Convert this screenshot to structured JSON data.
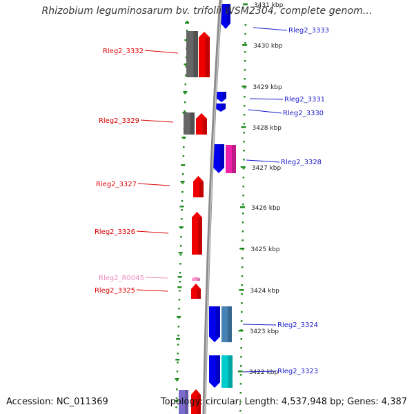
{
  "title": "Rhizobium leguminosarum bv. trifolii WSM2304, complete genom...",
  "footer": {
    "accession": "Accession: NC_011369",
    "summary": "Topology: circular; Length: 4,537,948 bp; Genes: 4,387"
  },
  "colors": {
    "backbone": "#8a8a8a",
    "tick_green": "#1f8a1f",
    "label_left": "#dd0000",
    "label_right": "#1a1acc",
    "label_rna": "#ee88bb"
  },
  "ruler": [
    {
      "label": "3431 kbp"
    },
    {
      "label": "3430 kbp"
    },
    {
      "label": "3429 kbp"
    },
    {
      "label": "3428 kbp"
    },
    {
      "label": "3427 kbp"
    },
    {
      "label": "3426 kbp"
    },
    {
      "label": "3425 kbp"
    },
    {
      "label": "3424 kbp"
    },
    {
      "label": "3423 kbp"
    },
    {
      "label": "3422 kbp"
    }
  ],
  "genes": [
    {
      "name": "Rleg2_3333",
      "side": "right",
      "color": "#0000ee",
      "direction": "down"
    },
    {
      "name": "Rleg2_3332",
      "side": "left",
      "color": "#ee0000",
      "direction": "up"
    },
    {
      "name": "Rleg2_3331",
      "side": "right",
      "color": "#0000ee",
      "direction": "down"
    },
    {
      "name": "Rleg2_3330",
      "side": "right",
      "color": "#0000ee",
      "direction": "down"
    },
    {
      "name": "Rleg2_3329",
      "side": "left",
      "color": "#ee0000",
      "direction": "up"
    },
    {
      "name": "Rleg2_3328",
      "side": "right",
      "color": "#0000ee",
      "direction": "down"
    },
    {
      "name": "Rleg2_3327",
      "side": "left",
      "color": "#ee0000",
      "direction": "up"
    },
    {
      "name": "Rleg2_3326",
      "side": "left",
      "color": "#ee0000",
      "direction": "up"
    },
    {
      "name": "Rleg2_R0045",
      "side": "left",
      "color": "#ff99cc",
      "direction": "up"
    },
    {
      "name": "Rleg2_3325",
      "side": "left",
      "color": "#ee0000",
      "direction": "up"
    },
    {
      "name": "Rleg2_3324",
      "side": "right",
      "color": "#0000ee",
      "direction": "down"
    },
    {
      "name": "Rleg2_3323",
      "side": "right",
      "color": "#0000ee",
      "direction": "down"
    }
  ],
  "companion_features": [
    {
      "color": "#666666"
    },
    {
      "color": "#666666"
    },
    {
      "color": "#ee22aa"
    },
    {
      "color": "#4682b4"
    },
    {
      "color": "#00cccc"
    }
  ]
}
